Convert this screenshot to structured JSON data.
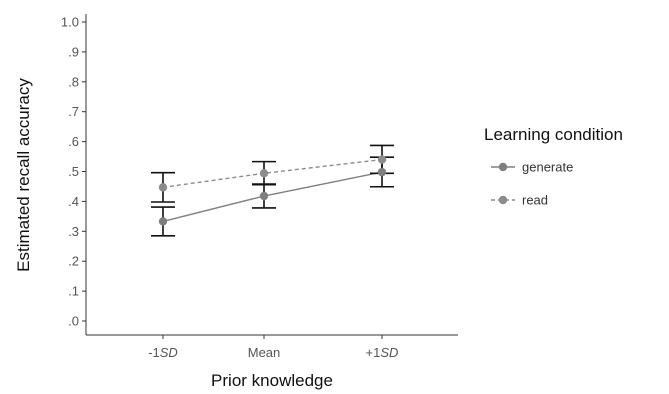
{
  "chart_data": {
    "type": "line",
    "title": "",
    "xlabel": "Prior knowledge",
    "ylabel": "Estimated recall accuracy",
    "categories": [
      {
        "prefix": "-1",
        "suffix": "SD"
      },
      {
        "prefix": "Mean",
        "suffix": ""
      },
      {
        "prefix": "+1",
        "suffix": "SD"
      }
    ],
    "y_ticks": [
      ".0",
      ".1",
      ".2",
      ".3",
      ".4",
      ".5",
      ".6",
      ".7",
      ".8",
      ".9",
      "1.0"
    ],
    "ylim": [
      0,
      1.0
    ],
    "grid": false,
    "legend": {
      "title": "Learning condition",
      "placement": "right"
    },
    "series": [
      {
        "name": "generate",
        "style": "solid",
        "color": "#7f7f7f",
        "values": [
          0.333,
          0.418,
          0.498
        ],
        "ci_low": [
          0.285,
          0.378,
          0.449
        ],
        "ci_high": [
          0.381,
          0.458,
          0.548
        ]
      },
      {
        "name": "read",
        "style": "dashed",
        "color": "#8c8c8c",
        "values": [
          0.447,
          0.494,
          0.54
        ],
        "ci_low": [
          0.398,
          0.456,
          0.494
        ],
        "ci_high": [
          0.496,
          0.533,
          0.587
        ]
      }
    ],
    "errorbar_color": "#111111"
  }
}
